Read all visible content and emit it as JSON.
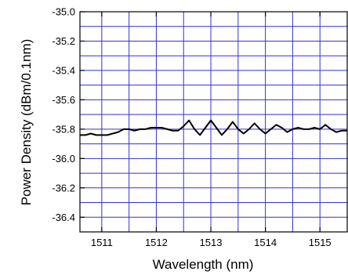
{
  "chart_data": {
    "type": "line",
    "title": "",
    "xlabel": "Wavelength (nm)",
    "ylabel": "Power Density (dBm/0.1nm)",
    "xlim": [
      1510.6,
      1515.5
    ],
    "ylim": [
      -36.5,
      -35.0
    ],
    "x_ticks": [
      1511,
      1512,
      1513,
      1514,
      1515
    ],
    "x_tick_labels": [
      "1511",
      "1512",
      "1513",
      "1514",
      "1515"
    ],
    "y_ticks": [
      -35.0,
      -35.2,
      -35.4,
      -35.6,
      -35.8,
      -36.0,
      -36.2,
      -36.4
    ],
    "y_tick_labels": [
      "-35.0",
      "-35.2",
      "-35.4",
      "-35.6",
      "-35.8",
      "-36.0",
      "-36.2",
      "-36.4"
    ],
    "grid": true,
    "grid_color": "#3333cc",
    "line_color": "#000000",
    "series": [
      {
        "x": [
          1510.6,
          1510.7,
          1510.8,
          1510.9,
          1511.0,
          1511.1,
          1511.2,
          1511.3,
          1511.4,
          1511.5,
          1511.6,
          1511.7,
          1511.8,
          1511.9,
          1512.0,
          1512.1,
          1512.2,
          1512.3,
          1512.4,
          1512.5,
          1512.6,
          1512.7,
          1512.8,
          1512.9,
          1513.0,
          1513.1,
          1513.2,
          1513.3,
          1513.4,
          1513.5,
          1513.6,
          1513.7,
          1513.8,
          1513.9,
          1514.0,
          1514.1,
          1514.2,
          1514.3,
          1514.4,
          1514.5,
          1514.6,
          1514.7,
          1514.8,
          1514.9,
          1515.0,
          1515.1,
          1515.2,
          1515.3,
          1515.4,
          1515.5
        ],
        "y": [
          -35.84,
          -35.84,
          -35.83,
          -35.84,
          -35.84,
          -35.84,
          -35.83,
          -35.82,
          -35.8,
          -35.8,
          -35.81,
          -35.8,
          -35.8,
          -35.79,
          -35.79,
          -35.79,
          -35.8,
          -35.81,
          -35.81,
          -35.78,
          -35.74,
          -35.8,
          -35.84,
          -35.79,
          -35.74,
          -35.79,
          -35.84,
          -35.8,
          -35.75,
          -35.8,
          -35.83,
          -35.8,
          -35.76,
          -35.8,
          -35.83,
          -35.8,
          -35.77,
          -35.79,
          -35.82,
          -35.8,
          -35.79,
          -35.8,
          -35.8,
          -35.79,
          -35.8,
          -35.77,
          -35.8,
          -35.82,
          -35.81,
          -35.81
        ]
      }
    ]
  }
}
